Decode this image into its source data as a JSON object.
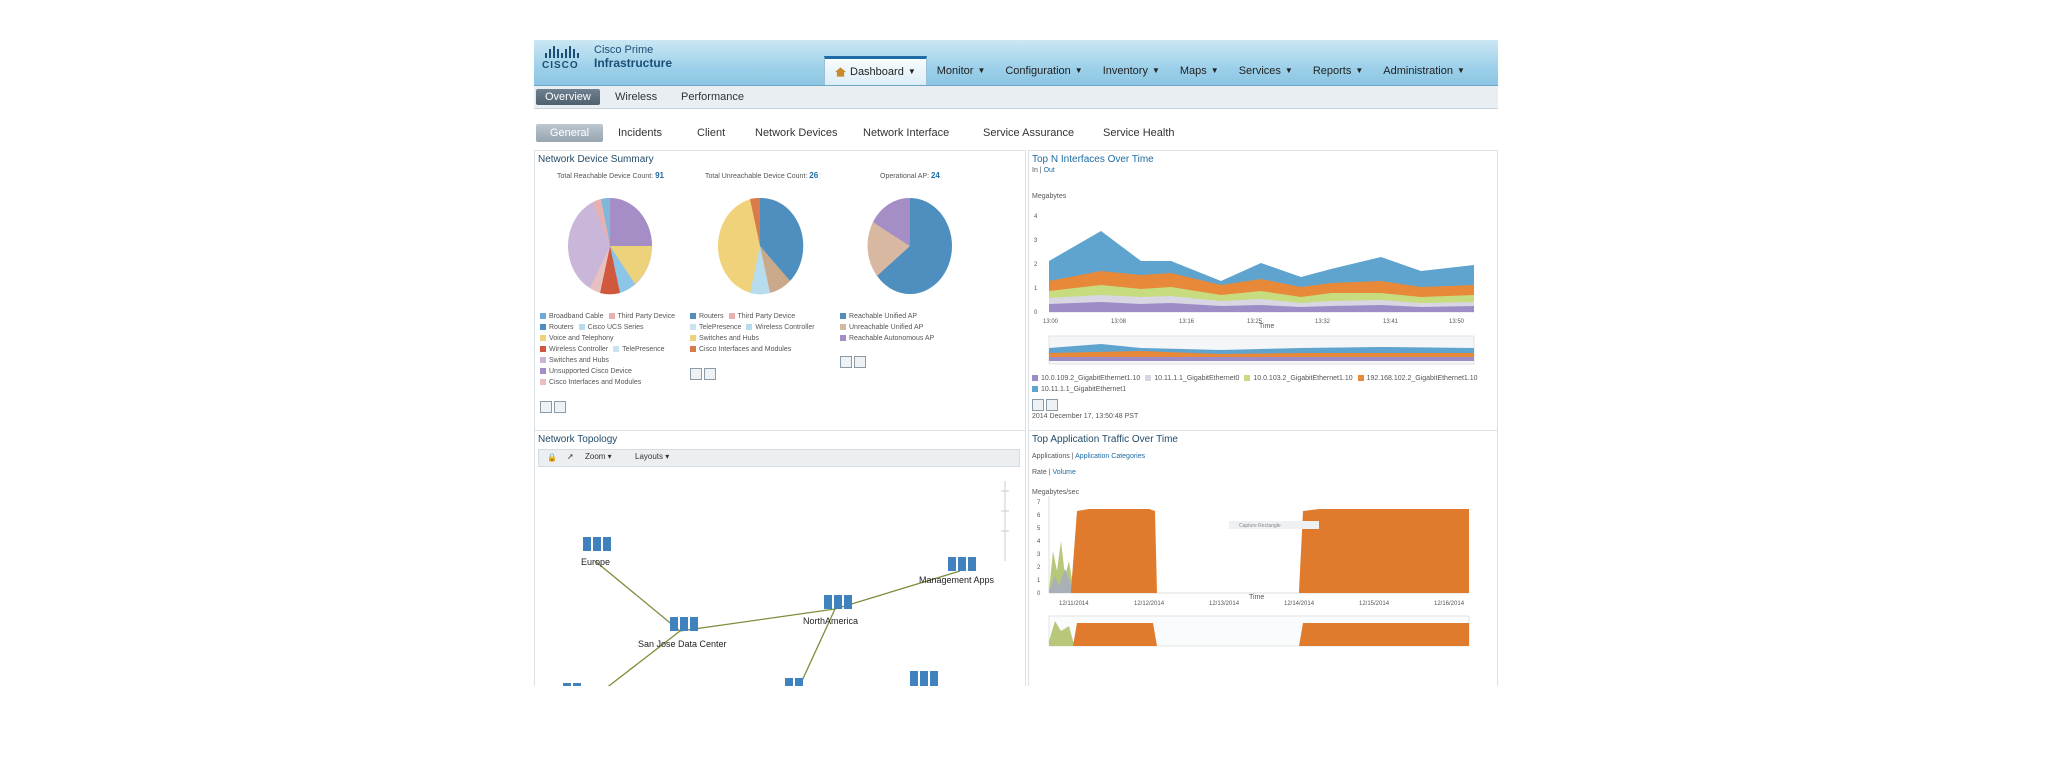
{
  "header": {
    "logo_text": "CISCO",
    "product_line1": "Cisco Prime",
    "product_line2": "Infrastructure",
    "nav": [
      {
        "label": "Dashboard"
      },
      {
        "label": "Monitor"
      },
      {
        "label": "Configuration"
      },
      {
        "label": "Inventory"
      },
      {
        "label": "Maps"
      },
      {
        "label": "Services"
      },
      {
        "label": "Reports"
      },
      {
        "label": "Administration"
      }
    ]
  },
  "subnav": [
    "Overview",
    "Wireless",
    "Performance"
  ],
  "tabs": [
    "General",
    "Incidents",
    "Client",
    "Network Devices",
    "Network Interface",
    "Service Assurance",
    "Service Health"
  ],
  "summary": {
    "title": "Network Device Summary",
    "reachable_label": "Total Reachable Device Count:",
    "reachable_value": "91",
    "unreachable_label": "Total Unreachable Device Count:",
    "unreachable_value": "26",
    "ap_label": "Operational AP:",
    "ap_value": "24",
    "legend1": [
      [
        "Broadband Cable",
        "Third Party Device"
      ],
      [
        "Routers",
        "Cisco UCS Series"
      ],
      [
        "Voice and Telephony"
      ],
      [
        "Wireless Controller",
        "TelePresence"
      ],
      [
        "Switches and Hubs"
      ],
      [
        "Unsupported Cisco Device"
      ],
      [
        "Cisco Interfaces and Modules"
      ]
    ],
    "legend2": [
      [
        "Routers",
        "Third Party Device"
      ],
      [
        "TelePresence",
        "Wireless Controller"
      ],
      [
        "Switches and Hubs"
      ],
      [
        "Cisco Interfaces and Modules"
      ]
    ],
    "legend3": [
      [
        "Reachable Unified AP"
      ],
      [
        "Unreachable Unified AP"
      ],
      [
        "Reachable Autonomous AP"
      ]
    ]
  },
  "topn": {
    "title": "Top N Interfaces Over Time",
    "in_label": "In",
    "out_label": "Out",
    "ylabel": "Megabytes",
    "xlabel": "Time",
    "yticks": [
      "4",
      "3",
      "2",
      "1",
      "0"
    ],
    "xticks": [
      "13:00",
      "13:08",
      "13:16",
      "13:25",
      "13:32",
      "13:41",
      "13:50"
    ],
    "legend": [
      "10.0.109.2_GigabitEthernet1.10",
      "10.11.1.1_GigabitEthernet0",
      "10.0.103.2_GigabitEthernet1.10",
      "192.168.102.2_GigabitEthernet1.10",
      "10.11.1.1_GigabitEthernet1"
    ],
    "timestamp": "2014 December 17, 13:50:48 PST"
  },
  "topology": {
    "title": "Network Topology",
    "zoom_label": "Zoom",
    "layouts_label": "Layouts",
    "nodes": [
      "Europe",
      "Management Apps",
      "San Jose Data Center",
      "NorthAmerica"
    ]
  },
  "apptraffic": {
    "title": "Top Application Traffic Over Time",
    "link1": "Applications",
    "link2": "Application Categories",
    "rate_label": "Rate",
    "volume_label": "Volume",
    "ylabel": "Megabytes/sec",
    "xlabel": "Time",
    "yticks": [
      "7",
      "6",
      "5",
      "4",
      "3",
      "2",
      "1",
      "0"
    ],
    "xticks": [
      "12/11/2014",
      "12/12/2014",
      "12/13/2014",
      "12/14/2014",
      "12/15/2014",
      "12/16/2014"
    ],
    "capture_label": "Capture Rectangle"
  },
  "colors": {
    "accent": "#1e6ca3",
    "orange": "#e07b2e",
    "blue_area": "#5fa3cf"
  }
}
